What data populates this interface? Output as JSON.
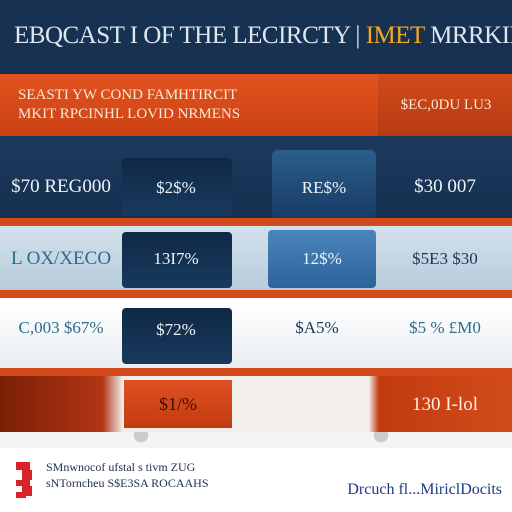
{
  "header": {
    "title_main": "EBQCAST I OF THE LECIRCTY",
    "title_divider": "|",
    "title_accent": "IMET",
    "title_end": "MRRKIE"
  },
  "subheader": {
    "line1": "SEASTI YW COND FAMHTIRCIT",
    "line2": "MKIT RPCINHL LOVID NRMENS",
    "right_label": "$EC,0DU LU3"
  },
  "rows": [
    {
      "c1": "$70 REG000",
      "c2": "$2$%",
      "c3": "RE$%",
      "c4": "$30 007"
    },
    {
      "c1": "L OX/XECO",
      "c2": "13I7%",
      "c3": "12$%",
      "c4": "$5E3 $30"
    },
    {
      "c1": "C,003 $67%",
      "c2": "$72%",
      "c3": "$A5%",
      "c4": "$5 % £M0"
    },
    {
      "c1": "",
      "c2": "$1/%",
      "c3": "",
      "c4": "130 I-lol"
    }
  ],
  "footer": {
    "line1": "SMnwnocof ufstal s tivm ZUG",
    "line2": "sNTorncheu S$E3SA ROCAAHS",
    "brand": "Drcuch fl...MiriclDocits"
  },
  "colors": {
    "navy": "#173152",
    "orange": "#e2531f",
    "gold": "#f5a81c",
    "rust": "#b23515"
  }
}
